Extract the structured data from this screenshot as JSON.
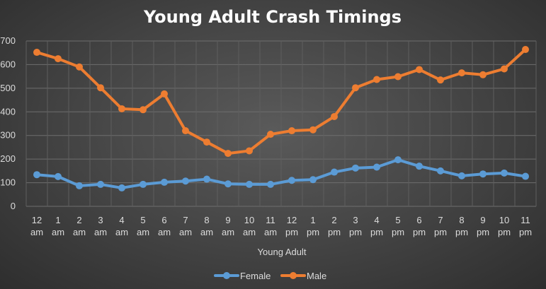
{
  "chart_data": {
    "type": "line",
    "title": "Young Adult Crash Timings",
    "xlabel": "Young Adult",
    "ylabel": "",
    "ylim": [
      0,
      700
    ],
    "yticks": [
      0,
      100,
      200,
      300,
      400,
      500,
      600,
      700
    ],
    "grid": true,
    "legend_position": "bottom",
    "categories": [
      [
        "12",
        "am"
      ],
      [
        "1",
        "am"
      ],
      [
        "2",
        "am"
      ],
      [
        "3",
        "am"
      ],
      [
        "4",
        "am"
      ],
      [
        "5",
        "am"
      ],
      [
        "6",
        "am"
      ],
      [
        "7",
        "am"
      ],
      [
        "8",
        "am"
      ],
      [
        "9",
        "am"
      ],
      [
        "10",
        "am"
      ],
      [
        "11",
        "am"
      ],
      [
        "12",
        "pm"
      ],
      [
        "1",
        "pm"
      ],
      [
        "2",
        "pm"
      ],
      [
        "3",
        "pm"
      ],
      [
        "4",
        "pm"
      ],
      [
        "5",
        "pm"
      ],
      [
        "6",
        "pm"
      ],
      [
        "7",
        "pm"
      ],
      [
        "8",
        "pm"
      ],
      [
        "9",
        "pm"
      ],
      [
        "10",
        "pm"
      ],
      [
        "11",
        "pm"
      ]
    ],
    "series": [
      {
        "name": "Female",
        "color": "#5b9bd5",
        "values": [
          134,
          126,
          87,
          93,
          78,
          93,
          102,
          107,
          115,
          95,
          93,
          93,
          110,
          113,
          145,
          162,
          166,
          197,
          170,
          150,
          129,
          137,
          141,
          127
        ]
      },
      {
        "name": "Male",
        "color": "#ed7d31",
        "values": [
          652,
          625,
          590,
          502,
          413,
          409,
          476,
          320,
          272,
          224,
          235,
          305,
          320,
          324,
          380,
          502,
          537,
          549,
          579,
          535,
          565,
          557,
          582,
          664
        ]
      }
    ]
  }
}
